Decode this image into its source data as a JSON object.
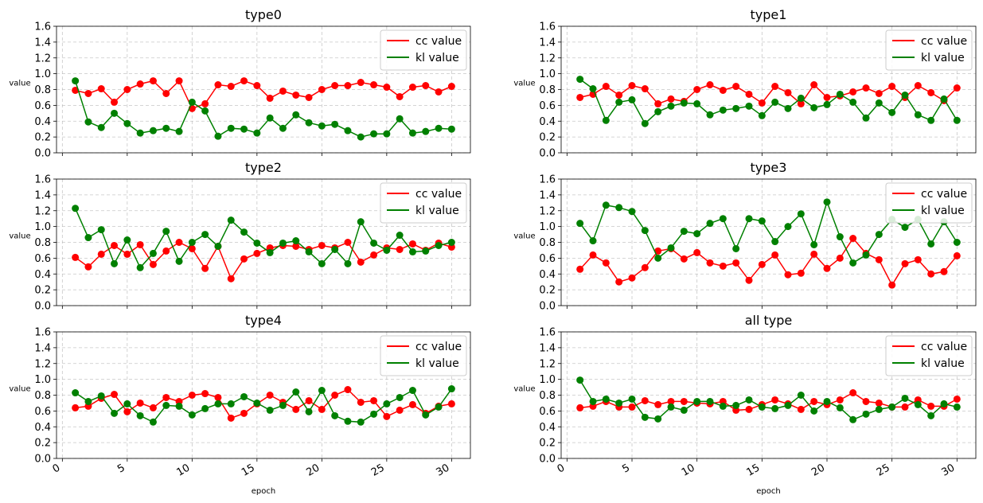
{
  "chart_data": [
    {
      "type": "line",
      "title": "type0",
      "ylabel": "value",
      "xlabel": "",
      "ylim": [
        0,
        1.6
      ],
      "yticks": [
        "0.0",
        "0.2",
        "0.4",
        "0.6",
        "0.8",
        "1.0",
        "1.2",
        "1.4",
        "1.6"
      ],
      "xticks": [],
      "grid": true,
      "legend": "upper-right",
      "x": [
        1,
        2,
        3,
        4,
        5,
        6,
        7,
        8,
        9,
        10,
        11,
        12,
        13,
        14,
        15,
        16,
        17,
        18,
        19,
        20,
        21,
        22,
        23,
        24,
        25,
        26,
        27,
        28,
        29,
        30
      ],
      "series": [
        {
          "name": "cc value",
          "color": "#ff0000",
          "values": [
            0.79,
            0.75,
            0.81,
            0.64,
            0.8,
            0.87,
            0.91,
            0.75,
            0.91,
            0.56,
            0.62,
            0.86,
            0.84,
            0.91,
            0.85,
            0.69,
            0.78,
            0.73,
            0.7,
            0.8,
            0.85,
            0.85,
            0.89,
            0.86,
            0.83,
            0.71,
            0.83,
            0.85,
            0.77,
            0.84
          ]
        },
        {
          "name": "kl value",
          "color": "#008000",
          "values": [
            0.91,
            0.39,
            0.32,
            0.5,
            0.37,
            0.25,
            0.28,
            0.31,
            0.27,
            0.64,
            0.53,
            0.21,
            0.31,
            0.3,
            0.25,
            0.44,
            0.31,
            0.48,
            0.38,
            0.34,
            0.36,
            0.28,
            0.2,
            0.24,
            0.24,
            0.43,
            0.25,
            0.27,
            0.31,
            0.3
          ]
        }
      ]
    },
    {
      "type": "line",
      "title": "type1",
      "ylabel": "value",
      "xlabel": "",
      "ylim": [
        0,
        1.6
      ],
      "yticks": [
        "0.0",
        "0.2",
        "0.4",
        "0.6",
        "0.8",
        "1.0",
        "1.2",
        "1.4",
        "1.6"
      ],
      "xticks": [],
      "grid": true,
      "legend": "upper-right",
      "x": [
        1,
        2,
        3,
        4,
        5,
        6,
        7,
        8,
        9,
        10,
        11,
        12,
        13,
        14,
        15,
        16,
        17,
        18,
        19,
        20,
        21,
        22,
        23,
        24,
        25,
        26,
        27,
        28,
        29,
        30
      ],
      "series": [
        {
          "name": "cc value",
          "color": "#ff0000",
          "values": [
            0.7,
            0.74,
            0.84,
            0.73,
            0.85,
            0.81,
            0.62,
            0.68,
            0.65,
            0.8,
            0.86,
            0.79,
            0.84,
            0.74,
            0.63,
            0.84,
            0.76,
            0.62,
            0.86,
            0.7,
            0.72,
            0.77,
            0.82,
            0.75,
            0.84,
            0.7,
            0.85,
            0.76,
            0.66,
            0.82
          ]
        },
        {
          "name": "kl value",
          "color": "#008000",
          "values": [
            0.93,
            0.81,
            0.41,
            0.64,
            0.67,
            0.37,
            0.52,
            0.59,
            0.63,
            0.62,
            0.48,
            0.54,
            0.56,
            0.59,
            0.47,
            0.64,
            0.56,
            0.69,
            0.57,
            0.61,
            0.74,
            0.64,
            0.44,
            0.63,
            0.51,
            0.73,
            0.48,
            0.41,
            0.68,
            0.41
          ]
        }
      ]
    },
    {
      "type": "line",
      "title": "type2",
      "ylabel": "value",
      "xlabel": "",
      "ylim": [
        0,
        1.6
      ],
      "yticks": [
        "0.0",
        "0.2",
        "0.4",
        "0.6",
        "0.8",
        "1.0",
        "1.2",
        "1.4",
        "1.6"
      ],
      "xticks": [],
      "grid": true,
      "legend": "upper-right",
      "x": [
        1,
        2,
        3,
        4,
        5,
        6,
        7,
        8,
        9,
        10,
        11,
        12,
        13,
        14,
        15,
        16,
        17,
        18,
        19,
        20,
        21,
        22,
        23,
        24,
        25,
        26,
        27,
        28,
        29,
        30
      ],
      "series": [
        {
          "name": "cc value",
          "color": "#ff0000",
          "values": [
            0.61,
            0.49,
            0.65,
            0.76,
            0.65,
            0.77,
            0.52,
            0.69,
            0.8,
            0.72,
            0.47,
            0.75,
            0.34,
            0.59,
            0.66,
            0.73,
            0.76,
            0.75,
            0.71,
            0.76,
            0.73,
            0.8,
            0.55,
            0.64,
            0.73,
            0.71,
            0.78,
            0.7,
            0.79,
            0.74
          ]
        },
        {
          "name": "kl value",
          "color": "#008000",
          "values": [
            1.23,
            0.86,
            0.96,
            0.53,
            0.83,
            0.48,
            0.66,
            0.94,
            0.56,
            0.8,
            0.9,
            0.75,
            1.08,
            0.93,
            0.79,
            0.67,
            0.79,
            0.82,
            0.68,
            0.53,
            0.71,
            0.53,
            1.06,
            0.79,
            0.7,
            0.89,
            0.68,
            0.69,
            0.76,
            0.8
          ]
        }
      ]
    },
    {
      "type": "line",
      "title": "type3",
      "ylabel": "value",
      "xlabel": "",
      "ylim": [
        0,
        1.6
      ],
      "yticks": [
        "0.0",
        "0.2",
        "0.4",
        "0.6",
        "0.8",
        "1.0",
        "1.2",
        "1.4",
        "1.6"
      ],
      "xticks": [],
      "grid": true,
      "legend": "upper-right",
      "x": [
        1,
        2,
        3,
        4,
        5,
        6,
        7,
        8,
        9,
        10,
        11,
        12,
        13,
        14,
        15,
        16,
        17,
        18,
        19,
        20,
        21,
        22,
        23,
        24,
        25,
        26,
        27,
        28,
        29,
        30
      ],
      "series": [
        {
          "name": "cc value",
          "color": "#ff0000",
          "values": [
            0.46,
            0.64,
            0.54,
            0.3,
            0.35,
            0.48,
            0.69,
            0.72,
            0.59,
            0.67,
            0.54,
            0.5,
            0.54,
            0.32,
            0.52,
            0.64,
            0.39,
            0.41,
            0.65,
            0.47,
            0.6,
            0.85,
            0.66,
            0.58,
            0.26,
            0.53,
            0.58,
            0.4,
            0.43,
            0.63
          ]
        },
        {
          "name": "kl value",
          "color": "#008000",
          "values": [
            1.04,
            0.82,
            1.27,
            1.24,
            1.19,
            0.95,
            0.6,
            0.73,
            0.94,
            0.91,
            1.04,
            1.1,
            0.72,
            1.1,
            1.07,
            0.81,
            1.0,
            1.16,
            0.77,
            1.31,
            0.87,
            0.54,
            0.64,
            0.9,
            1.09,
            0.99,
            1.09,
            0.78,
            1.06,
            0.8
          ]
        }
      ]
    },
    {
      "type": "line",
      "title": "type4",
      "ylabel": "value",
      "xlabel": "epoch",
      "ylim": [
        0,
        1.6
      ],
      "yticks": [
        "0.0",
        "0.2",
        "0.4",
        "0.6",
        "0.8",
        "1.0",
        "1.2",
        "1.4",
        "1.6"
      ],
      "xticks": [
        "0",
        "5",
        "10",
        "15",
        "20",
        "25",
        "30"
      ],
      "grid": true,
      "legend": "upper-right",
      "x": [
        1,
        2,
        3,
        4,
        5,
        6,
        7,
        8,
        9,
        10,
        11,
        12,
        13,
        14,
        15,
        16,
        17,
        18,
        19,
        20,
        21,
        22,
        23,
        24,
        25,
        26,
        27,
        28,
        29,
        30
      ],
      "series": [
        {
          "name": "cc value",
          "color": "#ff0000",
          "values": [
            0.64,
            0.66,
            0.76,
            0.81,
            0.59,
            0.7,
            0.64,
            0.77,
            0.72,
            0.8,
            0.82,
            0.77,
            0.51,
            0.57,
            0.69,
            0.8,
            0.71,
            0.62,
            0.73,
            0.62,
            0.8,
            0.87,
            0.71,
            0.73,
            0.53,
            0.61,
            0.68,
            0.57,
            0.66,
            0.69
          ]
        },
        {
          "name": "kl value",
          "color": "#008000",
          "values": [
            0.83,
            0.72,
            0.79,
            0.57,
            0.69,
            0.54,
            0.46,
            0.67,
            0.66,
            0.55,
            0.63,
            0.69,
            0.69,
            0.78,
            0.7,
            0.61,
            0.67,
            0.84,
            0.59,
            0.86,
            0.54,
            0.47,
            0.46,
            0.56,
            0.69,
            0.77,
            0.86,
            0.55,
            0.65,
            0.88
          ]
        }
      ]
    },
    {
      "type": "line",
      "title": "all type",
      "ylabel": "value",
      "xlabel": "epoch",
      "ylim": [
        0,
        1.6
      ],
      "yticks": [
        "0.0",
        "0.2",
        "0.4",
        "0.6",
        "0.8",
        "1.0",
        "1.2",
        "1.4",
        "1.6"
      ],
      "xticks": [
        "0",
        "5",
        "10",
        "15",
        "20",
        "25",
        "30"
      ],
      "grid": true,
      "legend": "upper-right",
      "x": [
        1,
        2,
        3,
        4,
        5,
        6,
        7,
        8,
        9,
        10,
        11,
        12,
        13,
        14,
        15,
        16,
        17,
        18,
        19,
        20,
        21,
        22,
        23,
        24,
        25,
        26,
        27,
        28,
        29,
        30
      ],
      "series": [
        {
          "name": "cc value",
          "color": "#ff0000",
          "values": [
            0.64,
            0.66,
            0.72,
            0.65,
            0.65,
            0.73,
            0.68,
            0.72,
            0.72,
            0.7,
            0.69,
            0.72,
            0.61,
            0.62,
            0.68,
            0.74,
            0.69,
            0.62,
            0.72,
            0.68,
            0.74,
            0.83,
            0.72,
            0.7,
            0.65,
            0.65,
            0.74,
            0.66,
            0.66,
            0.75
          ]
        },
        {
          "name": "kl value",
          "color": "#008000",
          "values": [
            0.99,
            0.72,
            0.75,
            0.7,
            0.75,
            0.52,
            0.5,
            0.65,
            0.61,
            0.72,
            0.72,
            0.66,
            0.67,
            0.74,
            0.65,
            0.63,
            0.67,
            0.8,
            0.6,
            0.72,
            0.64,
            0.49,
            0.56,
            0.62,
            0.65,
            0.76,
            0.68,
            0.54,
            0.69,
            0.65
          ]
        }
      ]
    }
  ]
}
